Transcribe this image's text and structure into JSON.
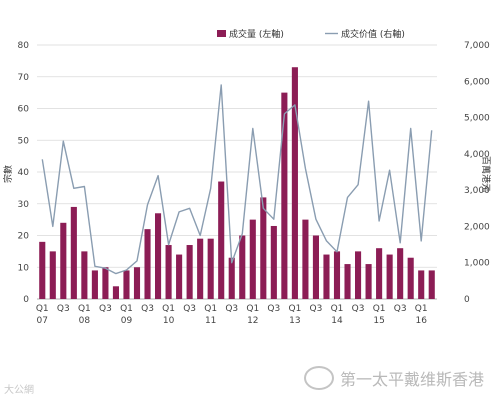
{
  "chart_data": {
    "type": "bar+line",
    "categories": [
      "Q1 07",
      "Q2 07",
      "Q3 07",
      "Q4 07",
      "Q1 08",
      "Q2 08",
      "Q3 08",
      "Q4 08",
      "Q1 09",
      "Q2 09",
      "Q3 09",
      "Q4 09",
      "Q1 10",
      "Q2 10",
      "Q3 10",
      "Q4 10",
      "Q1 11",
      "Q2 11",
      "Q3 11",
      "Q4 11",
      "Q1 12",
      "Q2 12",
      "Q3 12",
      "Q4 12",
      "Q1 13",
      "Q2 13",
      "Q3 13",
      "Q4 13",
      "Q1 14",
      "Q2 14",
      "Q3 14",
      "Q4 14",
      "Q1 15",
      "Q2 15",
      "Q3 15",
      "Q4 15",
      "Q1 16",
      "Q2 16"
    ],
    "x_tick_labels": [
      {
        "index": 0,
        "top": "Q1",
        "bottom": "07"
      },
      {
        "index": 2,
        "top": "Q3",
        "bottom": ""
      },
      {
        "index": 4,
        "top": "Q1",
        "bottom": "08"
      },
      {
        "index": 6,
        "top": "Q3",
        "bottom": ""
      },
      {
        "index": 8,
        "top": "Q1",
        "bottom": "09"
      },
      {
        "index": 10,
        "top": "Q3",
        "bottom": ""
      },
      {
        "index": 12,
        "top": "Q1",
        "bottom": "10"
      },
      {
        "index": 14,
        "top": "Q3",
        "bottom": ""
      },
      {
        "index": 16,
        "top": "Q1",
        "bottom": "11"
      },
      {
        "index": 18,
        "top": "Q3",
        "bottom": ""
      },
      {
        "index": 20,
        "top": "Q1",
        "bottom": "12"
      },
      {
        "index": 22,
        "top": "Q3",
        "bottom": ""
      },
      {
        "index": 24,
        "top": "Q1",
        "bottom": "13"
      },
      {
        "index": 26,
        "top": "Q3",
        "bottom": ""
      },
      {
        "index": 28,
        "top": "Q1",
        "bottom": "14"
      },
      {
        "index": 30,
        "top": "Q3",
        "bottom": ""
      },
      {
        "index": 32,
        "top": "Q1",
        "bottom": "15"
      },
      {
        "index": 34,
        "top": "Q3",
        "bottom": ""
      },
      {
        "index": 36,
        "top": "Q1",
        "bottom": "16"
      }
    ],
    "series": [
      {
        "name": "成交量 (左軸)",
        "type": "bar",
        "axis": "left",
        "color": "#8c1d55",
        "values": [
          18,
          15,
          24,
          29,
          15,
          9,
          10,
          4,
          9,
          10,
          22,
          27,
          17,
          14,
          17,
          19,
          19,
          37,
          13,
          20,
          25,
          32,
          23,
          65,
          73,
          25,
          20,
          14,
          15,
          11,
          15,
          11,
          16,
          14,
          16,
          13,
          9,
          9
        ]
      },
      {
        "name": "成交价值 (右軸)",
        "type": "line",
        "axis": "right",
        "color": "#8a9db1",
        "values": [
          3850,
          2000,
          4350,
          3050,
          3100,
          900,
          850,
          700,
          800,
          1050,
          2600,
          3400,
          1500,
          2400,
          2500,
          1750,
          3050,
          5900,
          1000,
          1800,
          4700,
          2500,
          2200,
          5100,
          5350,
          3600,
          2200,
          1600,
          1300,
          2800,
          3150,
          5450,
          2150,
          3550,
          1550,
          4700,
          1600,
          4650
        ]
      }
    ],
    "left_axis": {
      "label": "宗數",
      "ylim": [
        0,
        80
      ],
      "ticks": [
        "0",
        "10",
        "20",
        "30",
        "40",
        "50",
        "60",
        "70",
        "80"
      ]
    },
    "right_axis": {
      "label": "百萬港元",
      "ylim": [
        0,
        7000
      ],
      "ticks": [
        "0",
        "1,000",
        "2,000",
        "3,000",
        "4,000",
        "5,000",
        "6,000",
        "7,000"
      ]
    },
    "grid": true,
    "legend_position": "top-right"
  },
  "watermarks": {
    "left": "大公網",
    "right": "第一太平戴维斯香港"
  }
}
